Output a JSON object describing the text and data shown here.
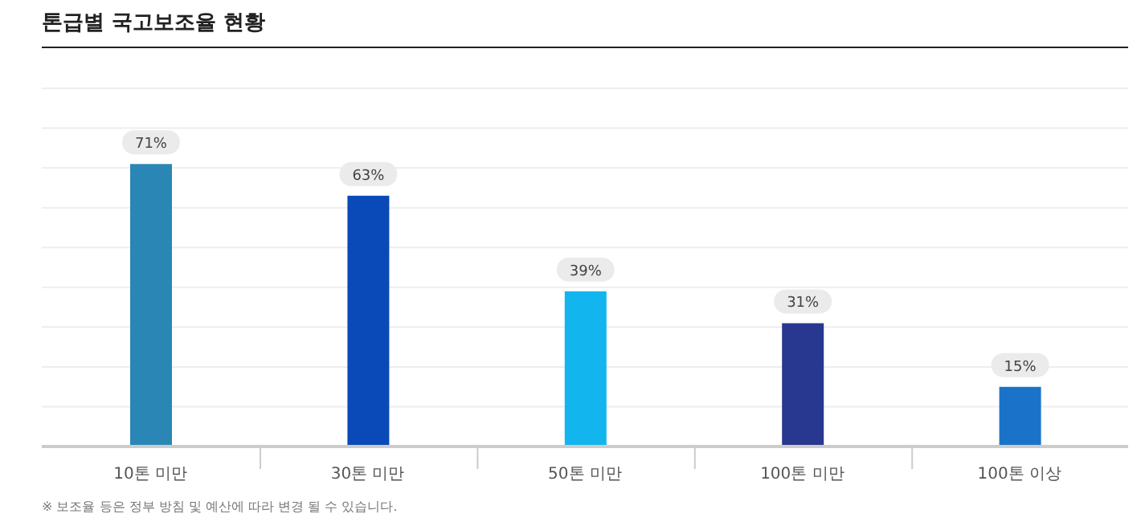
{
  "chart_data": {
    "type": "bar",
    "title": "톤급별 국고보조율 현황",
    "categories": [
      "10톤 미만",
      "30톤 미만",
      "50톤 미만",
      "100톤 미만",
      "100톤 이상"
    ],
    "values": [
      71,
      63,
      39,
      31,
      15
    ],
    "colors": [
      "#2a86b5",
      "#0a49b8",
      "#12b5ee",
      "#28378f",
      "#1a73c8"
    ],
    "value_labels": [
      "71%",
      "63%",
      "39%",
      "31%",
      "15%"
    ],
    "ylim": [
      0,
      90
    ],
    "yticks": [
      {
        "value": 0,
        "label": null
      },
      {
        "value": 10,
        "label": null
      },
      {
        "value": 20,
        "label": null
      },
      {
        "value": 30,
        "label": null
      },
      {
        "value": 40,
        "label": null
      },
      {
        "value": 50,
        "label": null
      },
      {
        "value": 60,
        "label": null
      },
      {
        "value": 70,
        "label": null
      },
      {
        "value": 80,
        "label": null
      },
      {
        "value": 90,
        "label": null
      }
    ],
    "tick_labels": "x",
    "grid": "y",
    "annotations": [
      "※ 보조율 등은 정부 방침 및 예산에 따라 변경 될 수 있습니다."
    ]
  }
}
